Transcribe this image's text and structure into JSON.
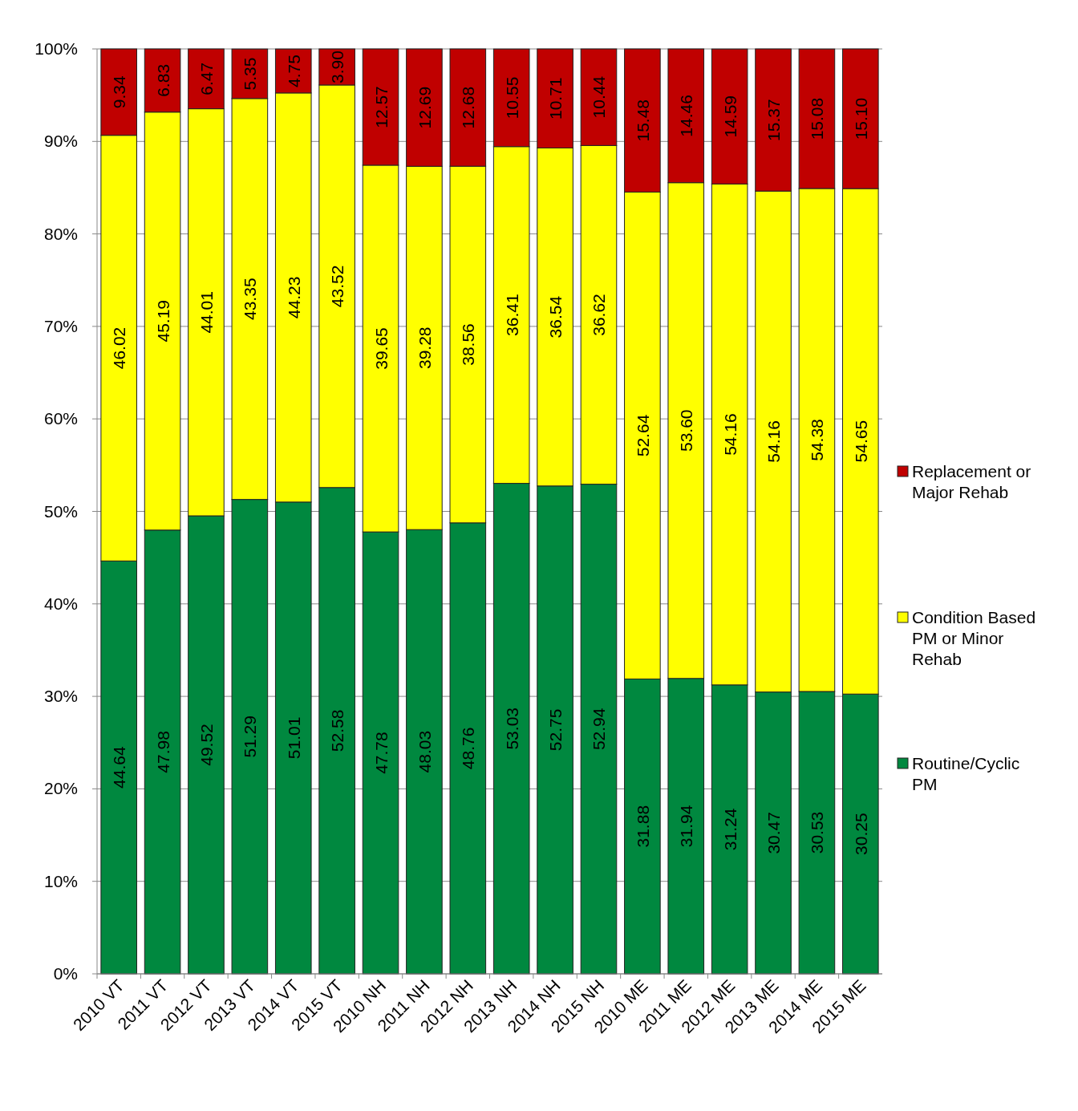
{
  "chart_data": {
    "type": "bar",
    "stacked": true,
    "categories": [
      "2010 VT",
      "2011 VT",
      "2012 VT",
      "2013 VT",
      "2014 VT",
      "2015 VT",
      "2010 NH",
      "2011 NH",
      "2012 NH",
      "2013 NH",
      "2014 NH",
      "2015 NH",
      "2010 ME",
      "2011 ME",
      "2012 ME",
      "2013 ME",
      "2014 ME",
      "2015 ME"
    ],
    "series": [
      {
        "name": "Routine/Cyclic PM",
        "color": "#00883f",
        "values": [
          44.64,
          47.98,
          49.52,
          51.29,
          51.01,
          52.58,
          47.78,
          48.03,
          48.76,
          53.03,
          52.75,
          52.94,
          31.88,
          31.94,
          31.24,
          30.47,
          30.53,
          30.25
        ],
        "value_labels": [
          "44.64",
          "47.98",
          "49.52",
          "51.29",
          "51.01",
          "52.58",
          "47.78",
          "48.03",
          "48.76",
          "53.03",
          "52.75",
          "52.94",
          "31.88",
          "31.94",
          "31.24",
          "30.47",
          "30.53",
          "30.25"
        ]
      },
      {
        "name": "Condition Based PM or Minor Rehab",
        "color": "#ffff00",
        "values": [
          46.02,
          45.19,
          44.01,
          43.35,
          44.23,
          43.52,
          39.65,
          39.28,
          38.56,
          36.41,
          36.54,
          36.62,
          52.64,
          53.6,
          54.16,
          54.16,
          54.38,
          54.65
        ],
        "value_labels": [
          "46.02",
          "45.19",
          "44.01",
          "43.35",
          "44.23",
          "43.52",
          "39.65",
          "39.28",
          "38.56",
          "36.41",
          "36.54",
          "36.62",
          "52.64",
          "53.60",
          "54.16",
          "54.16",
          "54.38",
          "54.65"
        ]
      },
      {
        "name": "Replacement or Major Rehab",
        "color": "#c00000",
        "values": [
          9.34,
          6.83,
          6.47,
          5.35,
          4.75,
          3.9,
          12.57,
          12.69,
          12.68,
          10.55,
          10.71,
          10.44,
          15.48,
          14.46,
          14.59,
          15.37,
          15.08,
          15.1
        ],
        "value_labels": [
          "9.34",
          "6.83",
          "6.47",
          "5.35",
          "4.75",
          "3.90",
          "12.57",
          "12.69",
          "12.68",
          "10.55",
          "10.71",
          "10.44",
          "15.48",
          "14.46",
          "14.59",
          "15.37",
          "15.08",
          "15.10"
        ]
      }
    ],
    "ylim": [
      0,
      100
    ],
    "yticks": [
      {
        "value": 0,
        "label": "0%"
      },
      {
        "value": 10,
        "label": "10%"
      },
      {
        "value": 20,
        "label": "20%"
      },
      {
        "value": 30,
        "label": "30%"
      },
      {
        "value": 40,
        "label": "40%"
      },
      {
        "value": 50,
        "label": "50%"
      },
      {
        "value": 60,
        "label": "60%"
      },
      {
        "value": 70,
        "label": "70%"
      },
      {
        "value": 80,
        "label": "80%"
      },
      {
        "value": 90,
        "label": "90%"
      },
      {
        "value": 100,
        "label": "100%"
      }
    ],
    "grid": "y",
    "legend": "right"
  }
}
